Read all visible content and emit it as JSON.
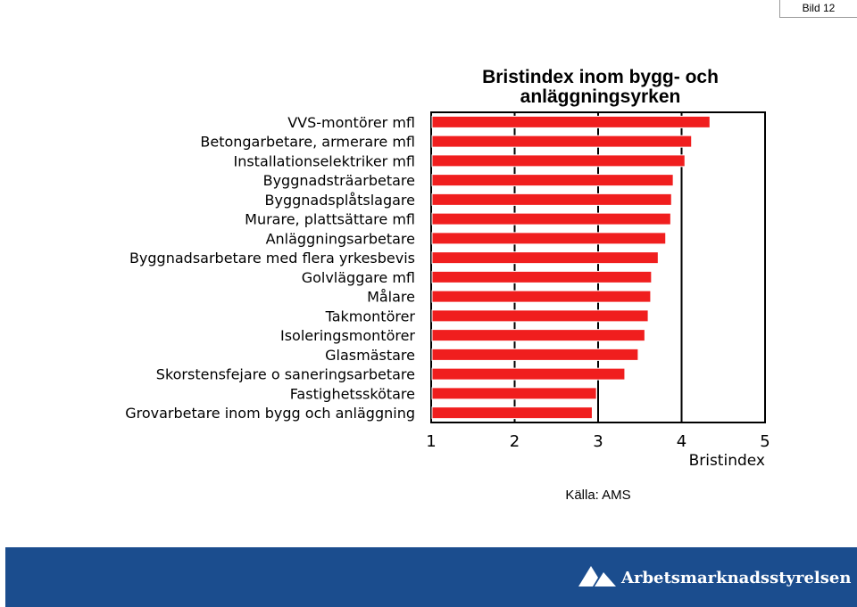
{
  "slide_tag": "Bild 12",
  "source": "Källa: AMS",
  "footer": {
    "brand": "Arbetsmarknadsstyrelsen"
  },
  "colors": {
    "bar": "#f01e1e",
    "footer": "#1b4d8e"
  },
  "chart_data": {
    "type": "bar",
    "orientation": "horizontal",
    "title": "Bristindex inom bygg- och\nanläggningsyrken",
    "xlabel": "Bristindex",
    "ylabel": "",
    "xlim": [
      1,
      5
    ],
    "xticks": [
      1,
      2,
      3,
      4,
      5
    ],
    "grid": "vertical",
    "categories": [
      "VVS-montörer mfl",
      "Betongarbetare, armerare mfl",
      "Installationselektriker mfl",
      "Byggnadsträarbetare",
      "Byggnadsplåtslagare",
      "Murare, plattsättare mfl",
      "Anläggningsarbetare",
      "Byggnadsarbetare med flera yrkesbevis",
      "Golvläggare mfl",
      "Målare",
      "Takmontörer",
      "Isoleringsmontörer",
      "Glasmästare",
      "Skorstensfejare o saneringsarbetare",
      "Fastighetsskötare",
      "Grovarbetare inom bygg och anläggning"
    ],
    "values": [
      4.34,
      4.12,
      4.04,
      3.9,
      3.88,
      3.87,
      3.81,
      3.72,
      3.64,
      3.63,
      3.6,
      3.56,
      3.48,
      3.32,
      2.98,
      2.93
    ]
  }
}
